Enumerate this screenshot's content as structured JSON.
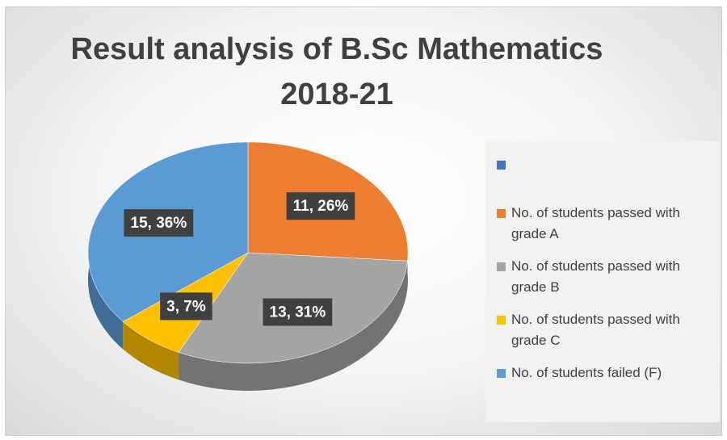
{
  "chart_data": {
    "type": "pie",
    "title": "Result analysis of B.Sc Mathematics 2018-21",
    "categories": [
      null,
      "No. of students passed with grade A",
      "No. of students passed with grade B",
      "No. of students passed with grade C",
      "No. of students failed (F)"
    ],
    "values": [
      null,
      11,
      13,
      3,
      15
    ],
    "value_labels": [
      null,
      "11, 26%",
      "13, 31%",
      "3, 7%",
      "15, 36%"
    ],
    "colors": [
      "#4472c4",
      "#ed7d31",
      "#a5a5a5",
      "#ffc000",
      "#5b9bd5"
    ],
    "legend": "right"
  }
}
